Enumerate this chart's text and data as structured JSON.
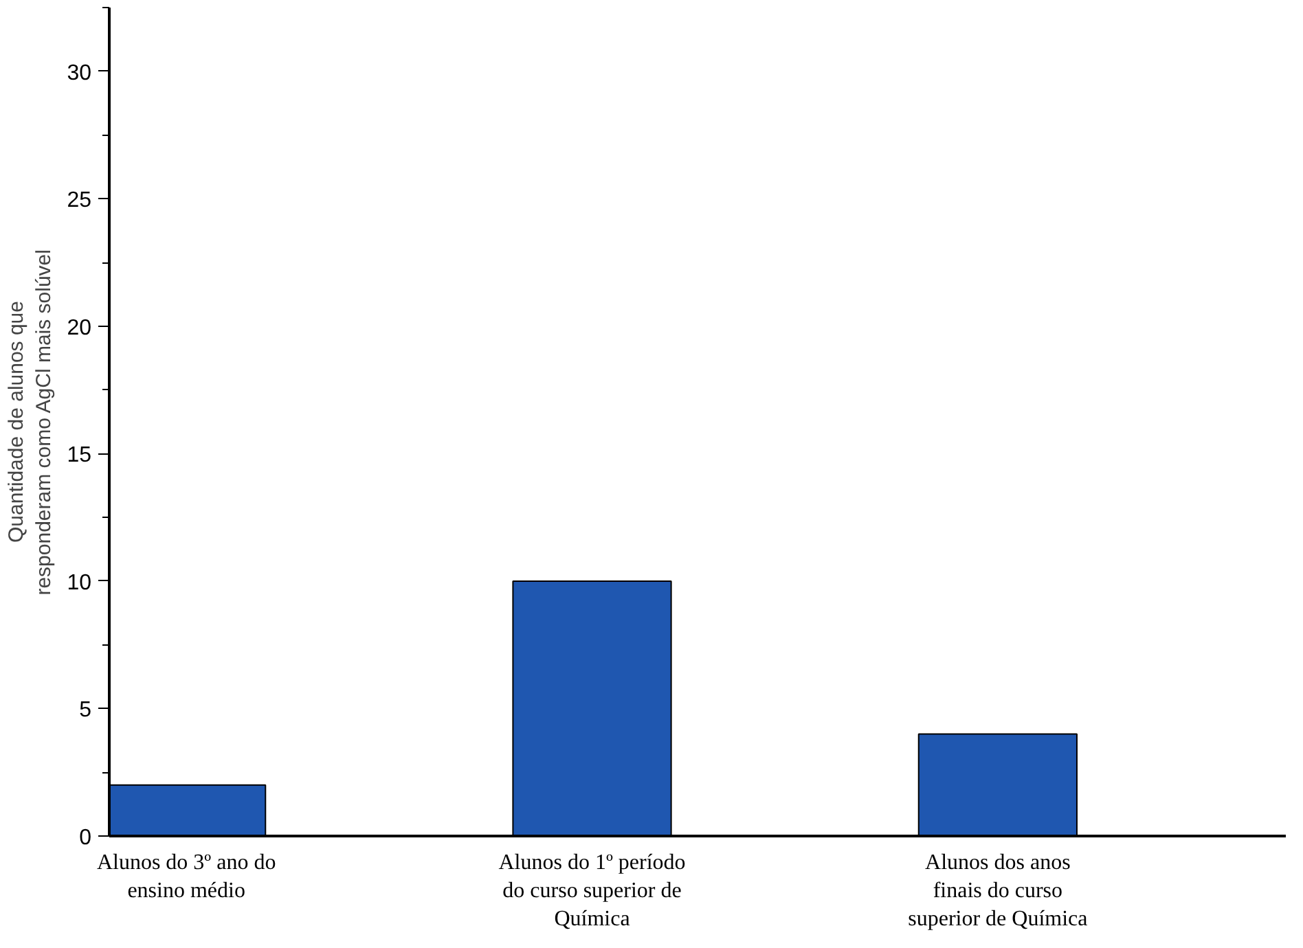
{
  "chart_data": {
    "type": "bar",
    "ylabel": "Quantidade de alunos que responderam como AgCl mais solúvel",
    "categories": [
      "Alunos do 3º ano do ensino médio",
      "Alunos do 1º período do curso superior de Química",
      "Alunos dos anos finais do curso superior de Química"
    ],
    "values": [
      2,
      10,
      4
    ],
    "color": "#1f57b0",
    "ylim": [
      0,
      32.5
    ],
    "yticks": [
      0,
      5,
      10,
      15,
      20,
      25,
      30
    ],
    "grid": false
  }
}
